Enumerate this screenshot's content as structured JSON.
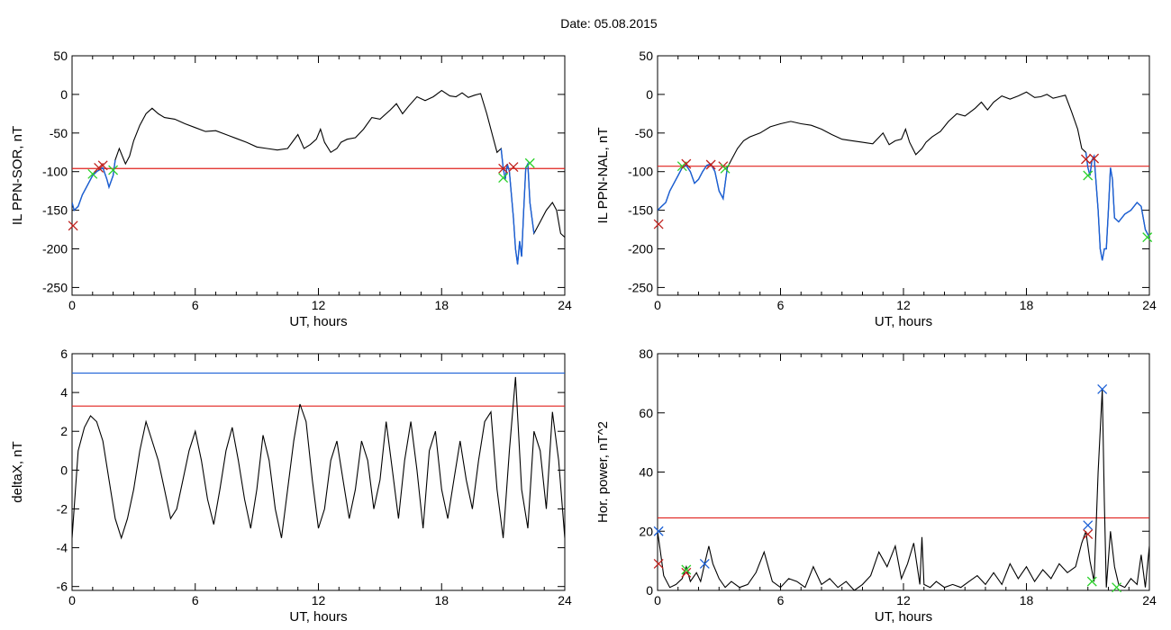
{
  "title": "Date:  05.08.2015",
  "colors": {
    "threshold_red": "#e0201c",
    "threshold_blue": "#1a5fd6",
    "trace_blue": "#1a5fd6",
    "marker_green": "#2bd12b",
    "marker_red": "#c0201c",
    "marker_blue": "#1a5fd6"
  },
  "chart_data": [
    {
      "type": "line",
      "xlabel": "UT, hours",
      "ylabel": "IL PPN-SOR, nT",
      "xlim": [
        0,
        24
      ],
      "ylim": [
        -260,
        50
      ],
      "xticks": [
        0,
        6,
        12,
        18,
        24
      ],
      "yticks": [
        50,
        0,
        -50,
        -100,
        -150,
        -200,
        -250
      ],
      "grid": false,
      "series": [
        {
          "x": [
            0,
            0.1,
            0.3,
            0.5,
            0.7,
            1.0,
            1.2,
            1.5,
            1.7,
            1.8,
            2.0,
            2.1,
            2.3,
            2.6,
            2.8,
            3.0,
            3.3,
            3.6,
            3.9,
            4.2,
            4.5,
            5.0,
            5.5,
            6.0,
            6.5,
            7.0,
            7.5,
            8.0,
            8.5,
            9.0,
            9.5,
            10.0,
            10.5,
            11.0,
            11.3,
            11.6,
            11.9,
            12.1,
            12.3,
            12.6,
            12.9,
            13.1,
            13.4,
            13.8,
            14.2,
            14.6,
            15.0,
            15.5,
            15.8,
            16.1,
            16.4,
            16.8,
            17.2,
            17.6,
            18.0,
            18.4,
            18.7,
            19.0,
            19.3,
            19.6,
            19.9,
            20.2,
            20.5,
            20.7,
            20.9,
            21.0,
            21.1,
            21.2,
            21.3,
            21.5,
            21.6,
            21.7,
            21.8,
            21.9,
            22.0,
            22.1,
            22.2,
            22.3,
            22.5,
            22.8,
            23.1,
            23.4,
            23.6,
            23.8,
            24.0
          ],
          "y": [
            -140,
            -150,
            -145,
            -130,
            -120,
            -105,
            -100,
            -95,
            -110,
            -120,
            -105,
            -85,
            -70,
            -90,
            -80,
            -60,
            -40,
            -25,
            -18,
            -25,
            -30,
            -32,
            -38,
            -43,
            -48,
            -47,
            -52,
            -57,
            -62,
            -68,
            -70,
            -72,
            -70,
            -52,
            -70,
            -65,
            -58,
            -45,
            -62,
            -75,
            -70,
            -62,
            -58,
            -56,
            -45,
            -30,
            -32,
            -20,
            -12,
            -25,
            -15,
            -3,
            -8,
            -3,
            5,
            -2,
            -3,
            2,
            -4,
            -1,
            1,
            -25,
            -55,
            -75,
            -70,
            -95,
            -110,
            -90,
            -100,
            -160,
            -200,
            -220,
            -190,
            -210,
            -150,
            -95,
            -90,
            -140,
            -180,
            -165,
            -150,
            -140,
            -150,
            -180,
            -185
          ],
          "highlight_ranges": [
            [
              0,
              2.2
            ],
            [
              20.9,
              22.5
            ]
          ]
        }
      ],
      "threshold_lines": [
        {
          "y": -96,
          "color": "red"
        }
      ],
      "markers": [
        {
          "x": 1.0,
          "y": -103,
          "color": "green"
        },
        {
          "x": 1.3,
          "y": -95,
          "color": "red"
        },
        {
          "x": 1.5,
          "y": -92,
          "color": "red"
        },
        {
          "x": 2.0,
          "y": -98,
          "color": "green"
        },
        {
          "x": 21.0,
          "y": -96,
          "color": "red"
        },
        {
          "x": 21.0,
          "y": -108,
          "color": "green"
        },
        {
          "x": 21.5,
          "y": -94,
          "color": "red"
        },
        {
          "x": 22.3,
          "y": -89,
          "color": "green"
        },
        {
          "x": 0.05,
          "y": -170,
          "color": "red"
        }
      ]
    },
    {
      "type": "line",
      "xlabel": "UT, hours",
      "ylabel": "IL PPN-NAL, nT",
      "xlim": [
        0,
        24
      ],
      "ylim": [
        -260,
        50
      ],
      "xticks": [
        0,
        6,
        12,
        18,
        24
      ],
      "yticks": [
        50,
        0,
        -50,
        -100,
        -150,
        -200,
        -250
      ],
      "grid": false,
      "series": [
        {
          "x": [
            0,
            0.2,
            0.4,
            0.6,
            0.8,
            1.0,
            1.2,
            1.4,
            1.6,
            1.8,
            2.0,
            2.2,
            2.4,
            2.6,
            2.8,
            3.0,
            3.2,
            3.4,
            3.6,
            3.9,
            4.2,
            4.5,
            5.0,
            5.5,
            6.0,
            6.5,
            7.0,
            7.5,
            8.0,
            8.5,
            9.0,
            9.5,
            10.0,
            10.5,
            11.0,
            11.3,
            11.6,
            11.9,
            12.1,
            12.3,
            12.6,
            12.9,
            13.1,
            13.4,
            13.8,
            14.2,
            14.6,
            15.0,
            15.5,
            15.8,
            16.1,
            16.4,
            16.8,
            17.2,
            17.6,
            18.0,
            18.4,
            18.7,
            19.0,
            19.3,
            19.6,
            19.9,
            20.2,
            20.5,
            20.7,
            20.9,
            21.0,
            21.1,
            21.2,
            21.3,
            21.5,
            21.6,
            21.7,
            21.8,
            21.9,
            22.0,
            22.1,
            22.2,
            22.3,
            22.5,
            22.8,
            23.1,
            23.4,
            23.6,
            23.8,
            24.0
          ],
          "y": [
            -150,
            -145,
            -140,
            -125,
            -115,
            -105,
            -95,
            -92,
            -100,
            -115,
            -110,
            -100,
            -92,
            -90,
            -100,
            -125,
            -135,
            -95,
            -85,
            -70,
            -60,
            -55,
            -50,
            -42,
            -38,
            -35,
            -38,
            -40,
            -45,
            -52,
            -58,
            -60,
            -62,
            -64,
            -50,
            -65,
            -60,
            -58,
            -45,
            -62,
            -78,
            -70,
            -62,
            -55,
            -48,
            -35,
            -25,
            -28,
            -18,
            -10,
            -20,
            -10,
            -2,
            -6,
            -2,
            3,
            -4,
            -3,
            0,
            -5,
            -3,
            -1,
            -22,
            -45,
            -70,
            -75,
            -95,
            -105,
            -85,
            -80,
            -150,
            -200,
            -215,
            -200,
            -200,
            -150,
            -95,
            -110,
            -160,
            -165,
            -155,
            -150,
            -140,
            -145,
            -175,
            -185
          ],
          "highlight_ranges": [
            [
              0,
              3.5
            ],
            [
              20.8,
              24
            ]
          ]
        }
      ],
      "threshold_lines": [
        {
          "y": -93,
          "color": "red"
        }
      ],
      "markers": [
        {
          "x": 1.2,
          "y": -93,
          "color": "green"
        },
        {
          "x": 1.4,
          "y": -90,
          "color": "red"
        },
        {
          "x": 2.6,
          "y": -91,
          "color": "red"
        },
        {
          "x": 3.2,
          "y": -93,
          "color": "red"
        },
        {
          "x": 3.3,
          "y": -96,
          "color": "green"
        },
        {
          "x": 20.9,
          "y": -84,
          "color": "red"
        },
        {
          "x": 21.0,
          "y": -105,
          "color": "green"
        },
        {
          "x": 21.3,
          "y": -83,
          "color": "red"
        },
        {
          "x": 0.05,
          "y": -168,
          "color": "red"
        },
        {
          "x": 23.9,
          "y": -185,
          "color": "green"
        }
      ]
    },
    {
      "type": "line",
      "xlabel": "UT, hours",
      "ylabel": "deltaX, nT",
      "xlim": [
        0,
        24
      ],
      "ylim": [
        -6.2,
        6
      ],
      "xticks": [
        0,
        6,
        12,
        18,
        24
      ],
      "yticks": [
        6,
        4,
        2,
        0,
        -2,
        -4,
        -6
      ],
      "grid": false,
      "series": [
        {
          "x": [
            0,
            0.3,
            0.6,
            0.9,
            1.2,
            1.5,
            1.8,
            2.1,
            2.4,
            2.7,
            3.0,
            3.3,
            3.6,
            3.9,
            4.2,
            4.5,
            4.8,
            5.1,
            5.4,
            5.7,
            6.0,
            6.3,
            6.6,
            6.9,
            7.2,
            7.5,
            7.8,
            8.1,
            8.4,
            8.7,
            9.0,
            9.3,
            9.6,
            9.9,
            10.2,
            10.5,
            10.8,
            11.1,
            11.4,
            11.7,
            12.0,
            12.3,
            12.6,
            12.9,
            13.2,
            13.5,
            13.8,
            14.1,
            14.4,
            14.7,
            15.0,
            15.3,
            15.6,
            15.9,
            16.2,
            16.5,
            16.8,
            17.1,
            17.4,
            17.7,
            18.0,
            18.3,
            18.6,
            18.9,
            19.2,
            19.5,
            19.8,
            20.1,
            20.4,
            20.7,
            21.0,
            21.3,
            21.6,
            21.9,
            22.2,
            22.5,
            22.8,
            23.1,
            23.4,
            23.7,
            24.0
          ],
          "y": [
            -3.5,
            1.0,
            2.2,
            2.8,
            2.5,
            1.5,
            -0.5,
            -2.5,
            -3.5,
            -2.5,
            -1.0,
            1.0,
            2.5,
            1.5,
            0.5,
            -1.0,
            -2.5,
            -2.0,
            -0.5,
            1.0,
            2.0,
            0.5,
            -1.5,
            -2.8,
            -1.0,
            1.0,
            2.2,
            0.5,
            -1.5,
            -3.0,
            -1.0,
            1.8,
            0.5,
            -2.0,
            -3.5,
            -1.0,
            1.5,
            3.4,
            2.5,
            -0.5,
            -3.0,
            -2.0,
            0.5,
            1.5,
            -0.5,
            -2.5,
            -1.0,
            1.5,
            0.5,
            -2.0,
            -0.5,
            2.5,
            0.0,
            -2.5,
            0.5,
            2.5,
            0.0,
            -3.0,
            1.0,
            2.0,
            -1.0,
            -2.5,
            -0.5,
            1.5,
            -0.5,
            -2.0,
            0.5,
            2.5,
            3.0,
            -1.0,
            -3.5,
            1.0,
            4.8,
            -1.0,
            -3.0,
            2.0,
            1.0,
            -2.0,
            3.0,
            0.5,
            -3.5
          ]
        }
      ],
      "threshold_lines": [
        {
          "y": 5.0,
          "color": "blue"
        },
        {
          "y": 3.3,
          "color": "red"
        }
      ]
    },
    {
      "type": "line",
      "xlabel": "UT, hours",
      "ylabel": "Hor. power, nT^2",
      "xlim": [
        0,
        24
      ],
      "ylim": [
        0,
        80
      ],
      "xticks": [
        0,
        6,
        12,
        18,
        24
      ],
      "yticks": [
        80,
        60,
        40,
        20,
        0
      ],
      "grid": false,
      "series": [
        {
          "x": [
            0,
            0.1,
            0.3,
            0.6,
            0.9,
            1.2,
            1.4,
            1.6,
            1.9,
            2.1,
            2.3,
            2.5,
            2.7,
            3.0,
            3.3,
            3.6,
            4.0,
            4.4,
            4.8,
            5.2,
            5.6,
            6.0,
            6.4,
            6.8,
            7.2,
            7.6,
            8.0,
            8.4,
            8.8,
            9.2,
            9.6,
            10.0,
            10.4,
            10.8,
            11.2,
            11.6,
            11.9,
            12.2,
            12.5,
            12.8,
            12.9,
            13.0,
            13.3,
            13.6,
            14.0,
            14.4,
            14.8,
            15.2,
            15.6,
            16.0,
            16.4,
            16.8,
            17.2,
            17.6,
            18.0,
            18.4,
            18.8,
            19.2,
            19.6,
            20.0,
            20.4,
            20.7,
            20.9,
            21.1,
            21.3,
            21.5,
            21.7,
            21.8,
            21.9,
            22.1,
            22.3,
            22.5,
            22.8,
            23.1,
            23.4,
            23.6,
            23.8,
            24.0
          ],
          "y": [
            20,
            15,
            5,
            1,
            2,
            4,
            8,
            3,
            6,
            3,
            9,
            15,
            9,
            4,
            1,
            3,
            1,
            2,
            6,
            13,
            3,
            1,
            4,
            3,
            1,
            8,
            2,
            4,
            1,
            3,
            0,
            2,
            5,
            13,
            8,
            15,
            4,
            9,
            16,
            2,
            18,
            2,
            1,
            3,
            1,
            2,
            1,
            3,
            5,
            2,
            6,
            2,
            9,
            4,
            8,
            3,
            7,
            4,
            9,
            6,
            8,
            16,
            20,
            10,
            3,
            40,
            68,
            30,
            1,
            20,
            8,
            2,
            1,
            4,
            2,
            12,
            1,
            15
          ]
        }
      ],
      "threshold_lines": [
        {
          "y": 24.5,
          "color": "red"
        }
      ],
      "markers": [
        {
          "x": 0.05,
          "y": 20,
          "color": "blue"
        },
        {
          "x": 0.05,
          "y": 9,
          "color": "red"
        },
        {
          "x": 1.4,
          "y": 6,
          "color": "red"
        },
        {
          "x": 1.4,
          "y": 7,
          "color": "green"
        },
        {
          "x": 2.3,
          "y": 9,
          "color": "blue"
        },
        {
          "x": 21.0,
          "y": 22,
          "color": "blue"
        },
        {
          "x": 21.0,
          "y": 19,
          "color": "red"
        },
        {
          "x": 21.2,
          "y": 3,
          "color": "green"
        },
        {
          "x": 21.7,
          "y": 68,
          "color": "blue"
        },
        {
          "x": 22.4,
          "y": 1,
          "color": "green"
        }
      ]
    }
  ]
}
